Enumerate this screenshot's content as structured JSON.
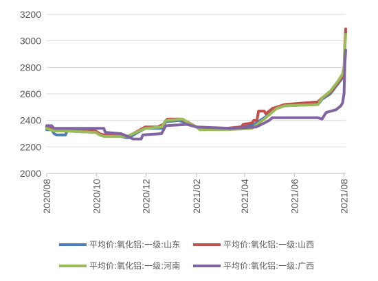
{
  "chart_data": {
    "type": "line",
    "title": "",
    "xlabel": "",
    "ylabel": "",
    "ylim": [
      2000,
      3200
    ],
    "yticks": [
      2000,
      2200,
      2400,
      2600,
      2800,
      3000,
      3200
    ],
    "xlim": [
      "2020-08-01",
      "2021-08-03"
    ],
    "xticks": [
      {
        "date": "2020-08-01",
        "label": "2020/08"
      },
      {
        "date": "2020-10-01",
        "label": "2020/10"
      },
      {
        "date": "2020-12-01",
        "label": "2020/12"
      },
      {
        "date": "2021-02-01",
        "label": "2021/02"
      },
      {
        "date": "2021-04-01",
        "label": "2021/04"
      },
      {
        "date": "2021-06-01",
        "label": "2021/06"
      },
      {
        "date": "2021-08-01",
        "label": "2021/08"
      }
    ],
    "grid": "horizontal",
    "legend_position": "bottom",
    "series": [
      {
        "name": "平均价:氧化铝:一级:山东",
        "color": "#4a7ebb",
        "points": [
          [
            "2020-08-01",
            2330
          ],
          [
            "2020-08-07",
            2330
          ],
          [
            "2020-08-10",
            2300
          ],
          [
            "2020-08-13",
            2290
          ],
          [
            "2020-08-24",
            2290
          ],
          [
            "2020-08-26",
            2320
          ],
          [
            "2020-09-30",
            2310
          ],
          [
            "2020-10-05",
            2290
          ],
          [
            "2020-10-10",
            2280
          ],
          [
            "2020-10-31",
            2280
          ],
          [
            "2020-11-06",
            2270
          ],
          [
            "2020-11-10",
            2270
          ],
          [
            "2020-11-18",
            2300
          ],
          [
            "2020-11-30",
            2340
          ],
          [
            "2020-12-20",
            2340
          ],
          [
            "2020-12-25",
            2390
          ],
          [
            "2021-01-10",
            2400
          ],
          [
            "2021-01-20",
            2380
          ],
          [
            "2021-02-01",
            2350
          ],
          [
            "2021-02-10",
            2330
          ],
          [
            "2021-03-10",
            2340
          ],
          [
            "2021-04-10",
            2360
          ],
          [
            "2021-04-25",
            2420
          ],
          [
            "2021-05-10",
            2490
          ],
          [
            "2021-05-20",
            2510
          ],
          [
            "2021-06-30",
            2520
          ],
          [
            "2021-07-05",
            2560
          ],
          [
            "2021-07-15",
            2600
          ],
          [
            "2021-07-25",
            2680
          ],
          [
            "2021-07-30",
            2720
          ],
          [
            "2021-08-01",
            2760
          ],
          [
            "2021-08-02",
            2960
          ],
          [
            "2021-08-03",
            3070
          ]
        ]
      },
      {
        "name": "平均价:氧化铝:一级:山西",
        "color": "#c0504d",
        "points": [
          [
            "2020-08-01",
            2350
          ],
          [
            "2020-08-10",
            2340
          ],
          [
            "2020-08-20",
            2330
          ],
          [
            "2020-09-30",
            2320
          ],
          [
            "2020-10-05",
            2300
          ],
          [
            "2020-10-10",
            2290
          ],
          [
            "2020-10-31",
            2290
          ],
          [
            "2020-11-08",
            2280
          ],
          [
            "2020-11-15",
            2300
          ],
          [
            "2020-11-30",
            2350
          ],
          [
            "2020-12-15",
            2350
          ],
          [
            "2020-12-22",
            2370
          ],
          [
            "2020-12-27",
            2410
          ],
          [
            "2021-01-12",
            2410
          ],
          [
            "2021-01-20",
            2390
          ],
          [
            "2021-02-01",
            2350
          ],
          [
            "2021-02-05",
            2330
          ],
          [
            "2021-03-10",
            2340
          ],
          [
            "2021-03-28",
            2350
          ],
          [
            "2021-03-30",
            2370
          ],
          [
            "2021-04-10",
            2380
          ],
          [
            "2021-04-12",
            2400
          ],
          [
            "2021-04-16",
            2400
          ],
          [
            "2021-04-18",
            2470
          ],
          [
            "2021-04-25",
            2470
          ],
          [
            "2021-04-27",
            2450
          ],
          [
            "2021-05-05",
            2490
          ],
          [
            "2021-05-20",
            2520
          ],
          [
            "2021-06-30",
            2540
          ],
          [
            "2021-07-05",
            2570
          ],
          [
            "2021-07-15",
            2610
          ],
          [
            "2021-07-25",
            2690
          ],
          [
            "2021-07-30",
            2730
          ],
          [
            "2021-08-01",
            2780
          ],
          [
            "2021-08-02",
            2980
          ],
          [
            "2021-08-03",
            3090
          ]
        ]
      },
      {
        "name": "平均价:氧化铝:一级:河南",
        "color": "#9bbb59",
        "points": [
          [
            "2020-08-01",
            2340
          ],
          [
            "2020-08-10",
            2320
          ],
          [
            "2020-08-24",
            2320
          ],
          [
            "2020-09-30",
            2310
          ],
          [
            "2020-10-05",
            2290
          ],
          [
            "2020-10-10",
            2280
          ],
          [
            "2020-10-31",
            2280
          ],
          [
            "2020-11-08",
            2280
          ],
          [
            "2020-11-15",
            2300
          ],
          [
            "2020-11-30",
            2340
          ],
          [
            "2020-12-20",
            2350
          ],
          [
            "2020-12-25",
            2400
          ],
          [
            "2021-01-15",
            2410
          ],
          [
            "2021-01-22",
            2380
          ],
          [
            "2021-02-01",
            2350
          ],
          [
            "2021-02-05",
            2330
          ],
          [
            "2021-03-10",
            2330
          ],
          [
            "2021-04-10",
            2340
          ],
          [
            "2021-04-25",
            2410
          ],
          [
            "2021-05-10",
            2490
          ],
          [
            "2021-05-20",
            2510
          ],
          [
            "2021-06-30",
            2520
          ],
          [
            "2021-07-05",
            2570
          ],
          [
            "2021-07-15",
            2620
          ],
          [
            "2021-07-25",
            2700
          ],
          [
            "2021-07-30",
            2750
          ],
          [
            "2021-08-01",
            2800
          ],
          [
            "2021-08-02",
            2950
          ],
          [
            "2021-08-03",
            3050
          ]
        ]
      },
      {
        "name": "平均价:氧化铝:一级:广西",
        "color": "#8064a2",
        "points": [
          [
            "2020-08-01",
            2360
          ],
          [
            "2020-08-07",
            2360
          ],
          [
            "2020-08-10",
            2340
          ],
          [
            "2020-09-15",
            2340
          ],
          [
            "2020-10-10",
            2340
          ],
          [
            "2020-10-12",
            2310
          ],
          [
            "2020-10-31",
            2300
          ],
          [
            "2020-11-08",
            2280
          ],
          [
            "2020-11-15",
            2260
          ],
          [
            "2020-11-25",
            2260
          ],
          [
            "2020-11-27",
            2290
          ],
          [
            "2020-12-20",
            2300
          ],
          [
            "2020-12-25",
            2360
          ],
          [
            "2021-01-20",
            2370
          ],
          [
            "2021-02-01",
            2350
          ],
          [
            "2021-03-15",
            2340
          ],
          [
            "2021-04-15",
            2350
          ],
          [
            "2021-04-25",
            2380
          ],
          [
            "2021-05-01",
            2400
          ],
          [
            "2021-05-05",
            2420
          ],
          [
            "2021-06-30",
            2420
          ],
          [
            "2021-07-05",
            2410
          ],
          [
            "2021-07-10",
            2460
          ],
          [
            "2021-07-22",
            2480
          ],
          [
            "2021-07-28",
            2510
          ],
          [
            "2021-07-30",
            2530
          ],
          [
            "2021-08-01",
            2600
          ],
          [
            "2021-08-02",
            2830
          ],
          [
            "2021-08-03",
            2930
          ]
        ]
      }
    ]
  }
}
